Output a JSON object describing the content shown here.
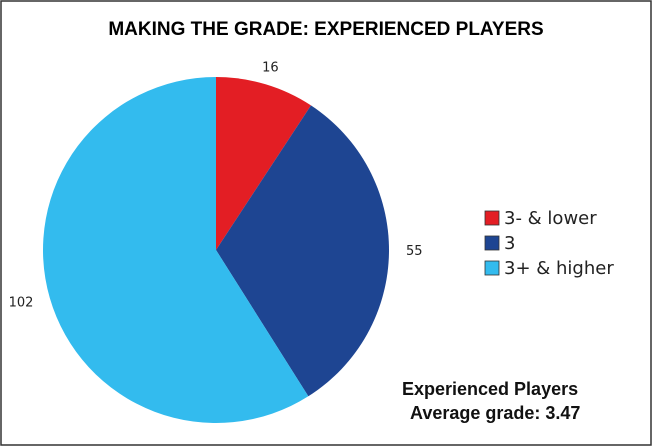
{
  "chart_data": {
    "type": "pie",
    "title": "MAKING THE GRADE: EXPERIENCED PLAYERS",
    "categories": [
      "3- & lower",
      "3",
      "3+ & higher"
    ],
    "values": [
      16,
      55,
      102
    ],
    "colors": [
      "#e31e24",
      "#1e4592",
      "#33bbee"
    ],
    "legend": "right",
    "annotations": [
      "Experienced Players",
      "Average grade: 3.47"
    ]
  }
}
